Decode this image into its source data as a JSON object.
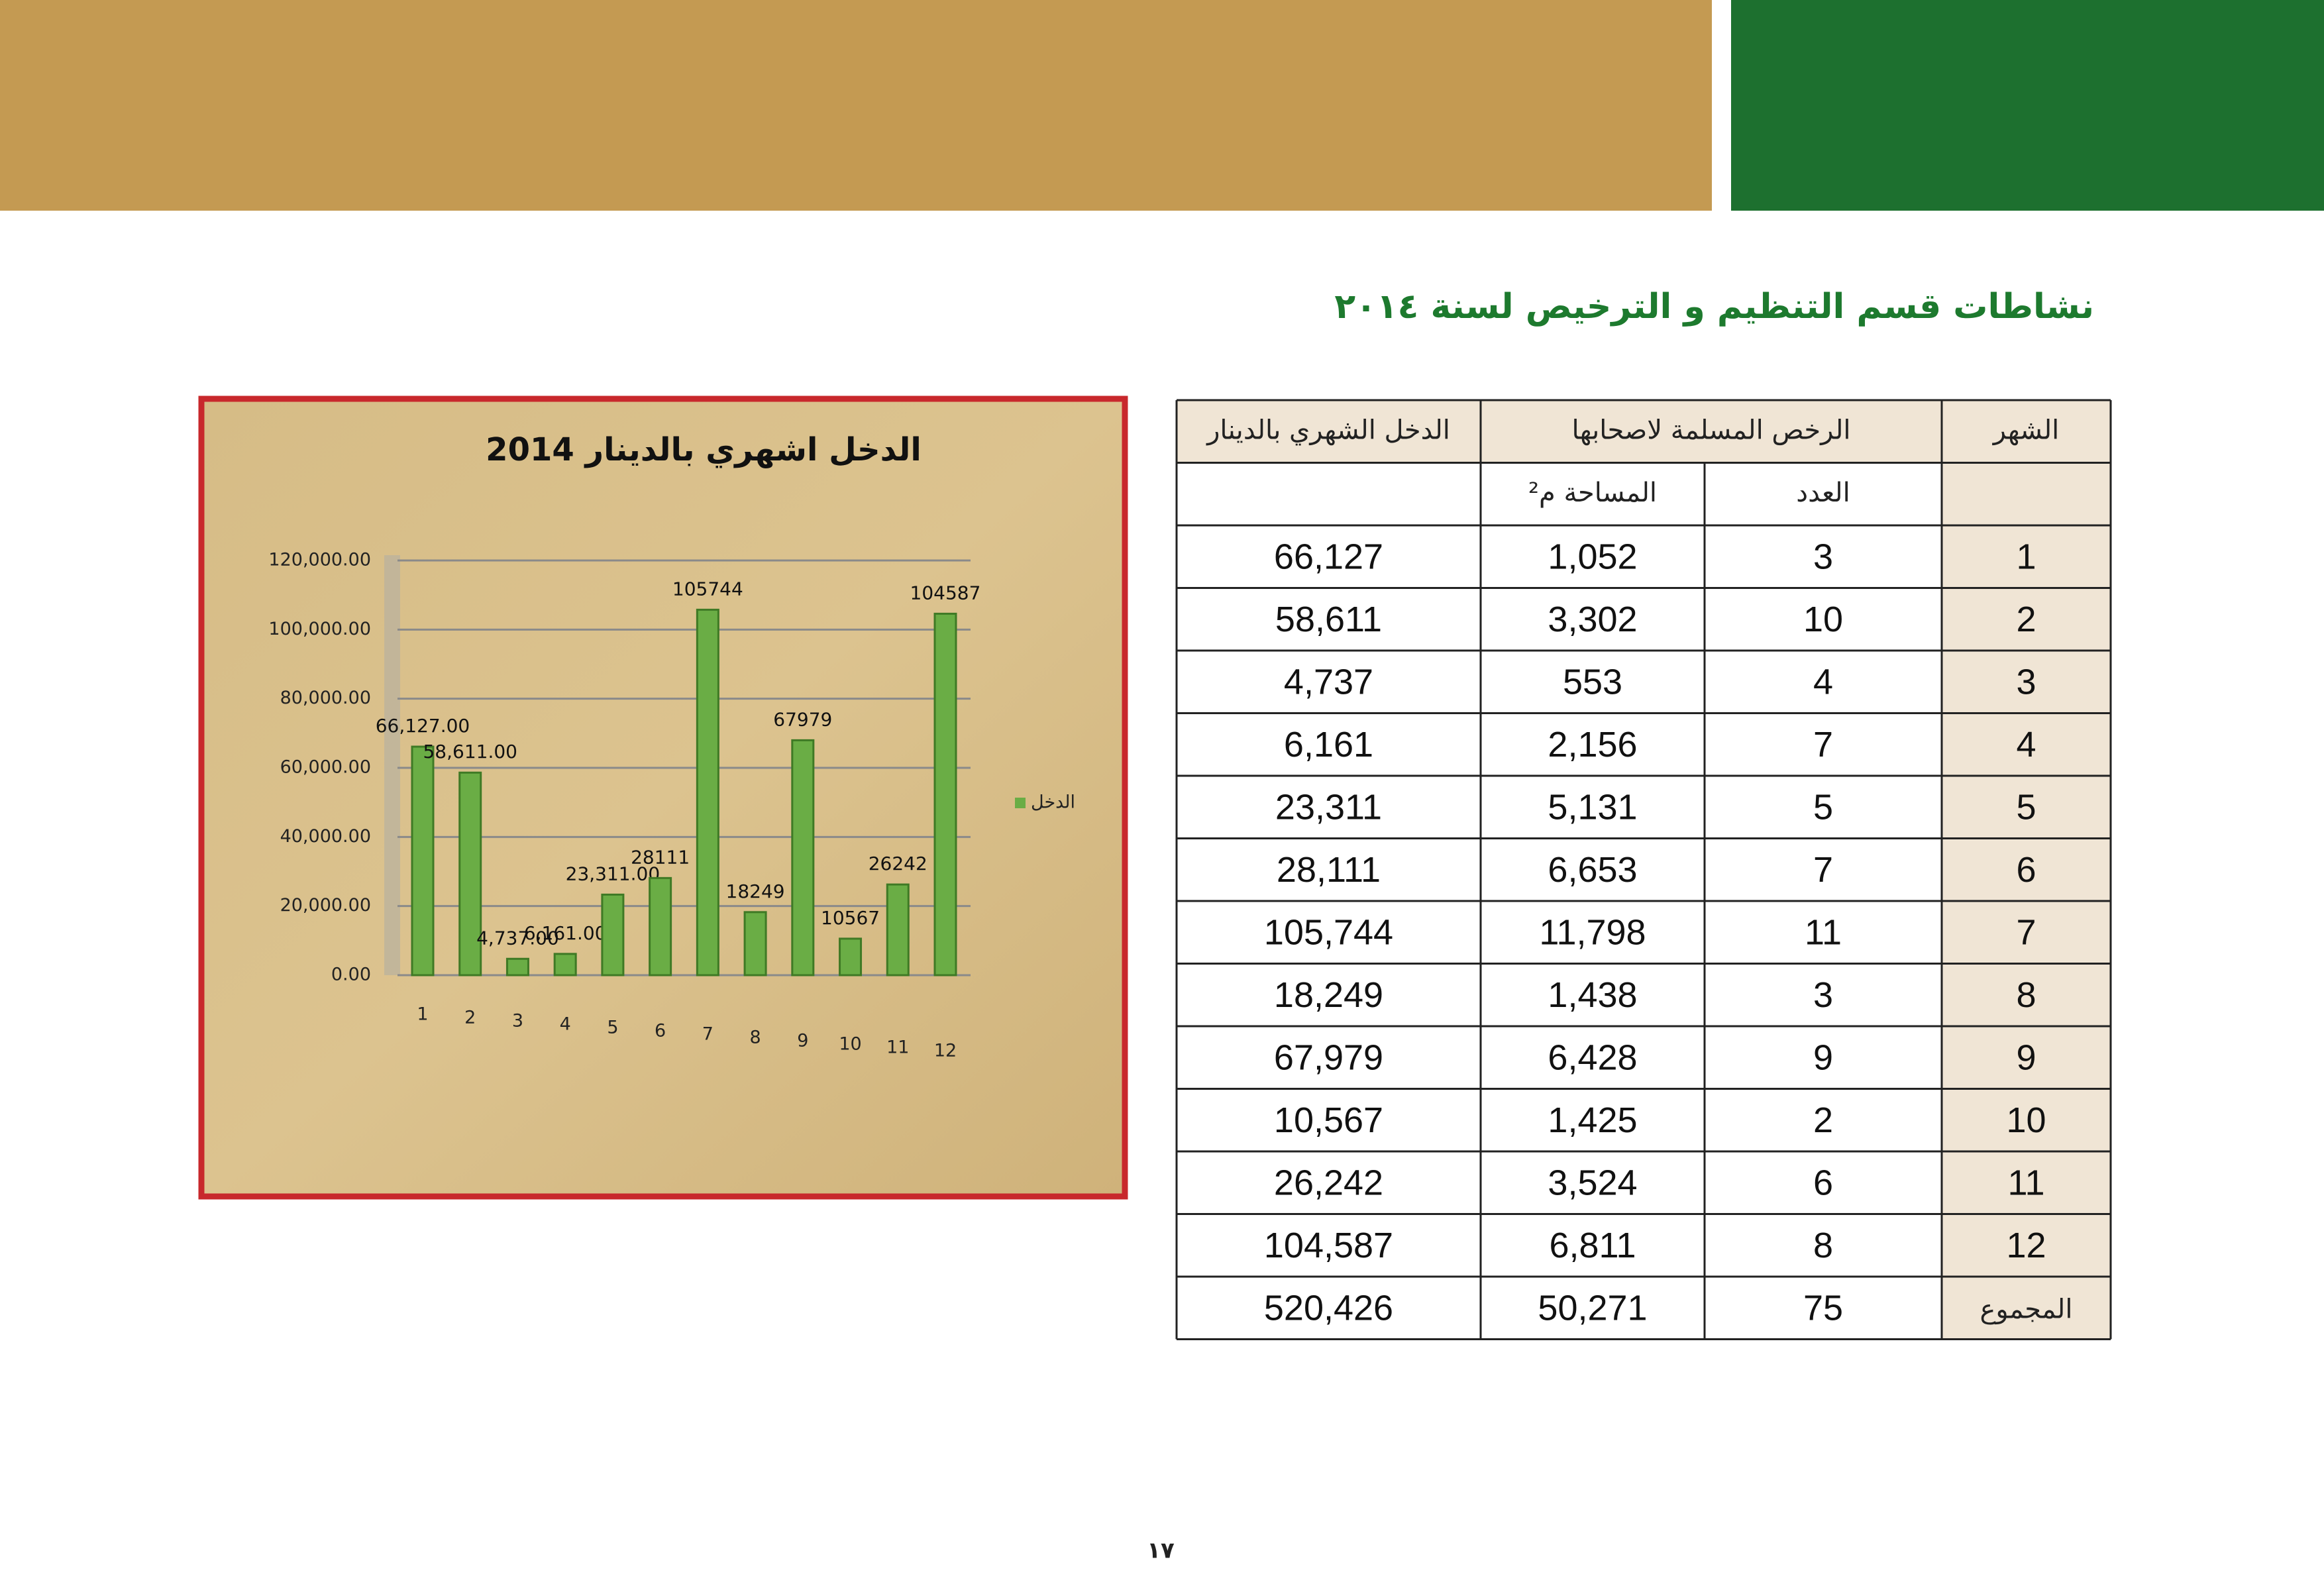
{
  "title": "نشاطات قسم التنظيم و الترخيص لسنة ٢٠١٤",
  "page_number": "١٧",
  "chart_data": {
    "type": "bar",
    "title": "الدخل اشهري بالدينار 2014",
    "categories": [
      "1",
      "2",
      "3",
      "4",
      "5",
      "6",
      "7",
      "8",
      "9",
      "10",
      "11",
      "12"
    ],
    "series": [
      {
        "name": "الدخل",
        "color": "#6aad45",
        "values": [
          66127,
          58611,
          4737,
          6161,
          23311,
          28111,
          105744,
          18249,
          67979,
          10567,
          26242,
          104587
        ],
        "value_labels": [
          "66,127.00",
          "58,611.00",
          "4,737.00",
          "6,161.00",
          "23,311.00",
          "28111",
          "105744",
          "18249",
          "67979",
          "10567",
          "26242",
          "104587"
        ]
      }
    ],
    "ylim": [
      0,
      120000
    ],
    "yticks": [
      {
        "value": 0,
        "label": "0.00"
      },
      {
        "value": 20000,
        "label": "20,000.00"
      },
      {
        "value": 40000,
        "label": "40,000.00"
      },
      {
        "value": 60000,
        "label": "60,000.00"
      },
      {
        "value": 80000,
        "label": "80,000.00"
      },
      {
        "value": 100000,
        "label": "100,000.00"
      },
      {
        "value": 120000,
        "label": "120,000.00"
      }
    ],
    "grid": true,
    "legend": "right"
  },
  "table": {
    "header": [
      "الدخل الشهري بالدينار",
      "الرخص المسلمة لاصحابها",
      "الشهر"
    ],
    "subheader": [
      "المساحة م²",
      "العدد"
    ],
    "rows": [
      [
        "1",
        "3",
        "1,052",
        "66,127"
      ],
      [
        "2",
        "10",
        "3,302",
        "58,611"
      ],
      [
        "3",
        "4",
        "553",
        "4,737"
      ],
      [
        "4",
        "7",
        "2,156",
        "6,161"
      ],
      [
        "5",
        "5",
        "5,131",
        "23,311"
      ],
      [
        "6",
        "7",
        "6,653",
        "28,111"
      ],
      [
        "7",
        "11",
        "11,798",
        "105,744"
      ],
      [
        "8",
        "3",
        "1,438",
        "18,249"
      ],
      [
        "9",
        "9",
        "6,428",
        "67,979"
      ],
      [
        "10",
        "2",
        "1,425",
        "10,567"
      ],
      [
        "11",
        "6",
        "3,524",
        "26,242"
      ],
      [
        "12",
        "8",
        "6,811",
        "104,587"
      ],
      [
        "المجموع",
        "75",
        "50,271",
        "520,426"
      ]
    ]
  }
}
